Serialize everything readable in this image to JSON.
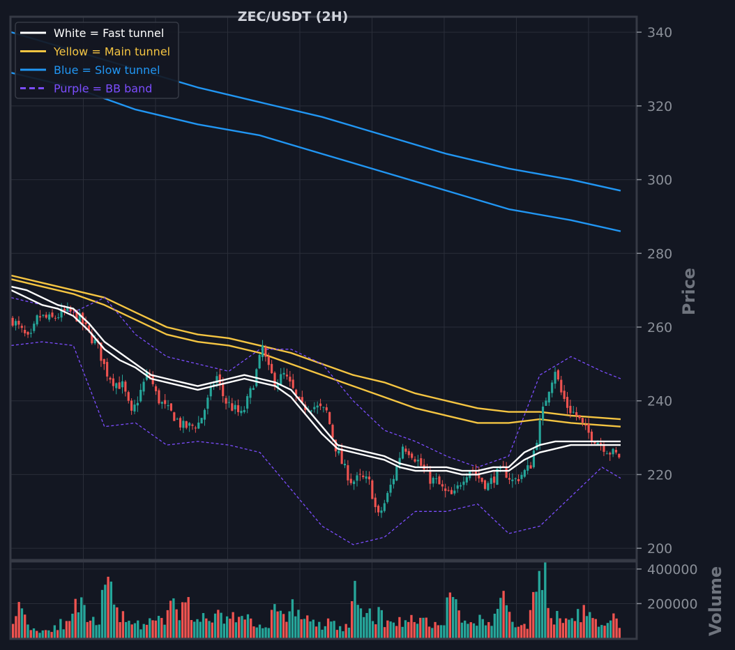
{
  "colors": {
    "background": "#131722",
    "grid": "#2a2e39",
    "frame": "#363a45",
    "up": "#26a69a",
    "down": "#ef5350",
    "fast": "#ffffff",
    "main": "#f5c542",
    "slow": "#2196f3",
    "bb": "#7c4dff"
  },
  "chart_data": {
    "type": "candlestick",
    "title": "ZEC/USDT (2H)",
    "price_axis": {
      "label": "Price",
      "ticks": [
        200,
        220,
        240,
        260,
        280,
        300,
        320,
        340
      ],
      "range": [
        197,
        344
      ],
      "side": "right"
    },
    "volume_axis": {
      "label": "Volume",
      "ticks": [
        200000,
        400000
      ],
      "tick_labels": [
        "200000",
        "400000"
      ],
      "range": [
        0,
        440000
      ],
      "side": "right"
    },
    "grid": true,
    "legend_position": "top-left",
    "legend": [
      {
        "label": "White = Fast tunnel",
        "color": "#ffffff",
        "style": "solid"
      },
      {
        "label": "Yellow = Main tunnel",
        "color": "#f5c542",
        "style": "solid"
      },
      {
        "label": "Blue = Slow tunnel",
        "color": "#2196f3",
        "style": "solid"
      },
      {
        "label": "Purple = BB band",
        "color": "#7c4dff",
        "style": "dashed"
      }
    ],
    "candle_count": 200,
    "close_path": [
      [
        0,
        262
      ],
      [
        8,
        256
      ],
      [
        12,
        263
      ],
      [
        18,
        262
      ],
      [
        24,
        264
      ],
      [
        28,
        264
      ],
      [
        32,
        262
      ],
      [
        36,
        258
      ],
      [
        40,
        255
      ],
      [
        44,
        248
      ],
      [
        48,
        245
      ],
      [
        52,
        244
      ],
      [
        56,
        236
      ],
      [
        60,
        242
      ],
      [
        64,
        248
      ],
      [
        68,
        241
      ],
      [
        72,
        238
      ],
      [
        76,
        236
      ],
      [
        80,
        233
      ],
      [
        84,
        233
      ],
      [
        88,
        234
      ],
      [
        92,
        240
      ],
      [
        96,
        247
      ],
      [
        100,
        240
      ],
      [
        104,
        238
      ],
      [
        108,
        236
      ],
      [
        112,
        242
      ],
      [
        116,
        250
      ],
      [
        118,
        255
      ],
      [
        120,
        249
      ],
      [
        124,
        245
      ],
      [
        128,
        247
      ],
      [
        132,
        243
      ],
      [
        136,
        238
      ],
      [
        140,
        239
      ],
      [
        144,
        238
      ],
      [
        148,
        237
      ],
      [
        152,
        228
      ],
      [
        156,
        222
      ],
      [
        160,
        218
      ],
      [
        164,
        219
      ],
      [
        168,
        218
      ],
      [
        170,
        214
      ],
      [
        172,
        208
      ],
      [
        176,
        213
      ],
      [
        180,
        220
      ],
      [
        184,
        228
      ],
      [
        188,
        226
      ],
      [
        192,
        223
      ],
      [
        196,
        219
      ],
      [
        200,
        218
      ],
      [
        204,
        215
      ],
      [
        208,
        214
      ],
      [
        212,
        219
      ],
      [
        216,
        222
      ],
      [
        220,
        219
      ],
      [
        224,
        217
      ],
      [
        228,
        220
      ],
      [
        232,
        221
      ],
      [
        236,
        218
      ],
      [
        240,
        220
      ],
      [
        244,
        222
      ],
      [
        248,
        232
      ],
      [
        252,
        242
      ],
      [
        256,
        249
      ],
      [
        258,
        243
      ],
      [
        262,
        238
      ],
      [
        266,
        236
      ],
      [
        270,
        232
      ],
      [
        274,
        230
      ],
      [
        278,
        228
      ],
      [
        282,
        226
      ],
      [
        286,
        225
      ]
    ],
    "fast_tunnel": {
      "upper": [
        [
          0,
          270
        ],
        [
          5,
          268
        ],
        [
          10,
          266
        ],
        [
          15,
          265
        ],
        [
          20,
          263
        ],
        [
          25,
          259
        ],
        [
          30,
          254
        ],
        [
          35,
          251
        ],
        [
          40,
          249
        ],
        [
          45,
          246
        ],
        [
          50,
          245
        ],
        [
          55,
          244
        ],
        [
          60,
          243
        ],
        [
          65,
          244
        ],
        [
          70,
          245
        ],
        [
          75,
          246
        ],
        [
          80,
          245
        ],
        [
          85,
          244
        ],
        [
          90,
          241
        ],
        [
          95,
          236
        ],
        [
          100,
          231
        ],
        [
          105,
          227
        ],
        [
          110,
          226
        ],
        [
          115,
          225
        ],
        [
          120,
          224
        ],
        [
          125,
          222
        ],
        [
          130,
          221
        ],
        [
          135,
          221
        ],
        [
          140,
          221
        ],
        [
          145,
          220
        ],
        [
          150,
          220
        ],
        [
          155,
          221
        ],
        [
          160,
          221
        ],
        [
          165,
          224
        ],
        [
          170,
          226
        ],
        [
          175,
          227
        ],
        [
          180,
          228
        ],
        [
          185,
          228
        ],
        [
          190,
          228
        ],
        [
          196,
          228
        ]
      ],
      "lower": [
        [
          0,
          271
        ],
        [
          5,
          270
        ],
        [
          10,
          268
        ],
        [
          15,
          266
        ],
        [
          20,
          265
        ],
        [
          25,
          261
        ],
        [
          30,
          256
        ],
        [
          35,
          253
        ],
        [
          40,
          250
        ],
        [
          45,
          247
        ],
        [
          50,
          246
        ],
        [
          55,
          245
        ],
        [
          60,
          244
        ],
        [
          65,
          245
        ],
        [
          70,
          246
        ],
        [
          75,
          247
        ],
        [
          80,
          246
        ],
        [
          85,
          245
        ],
        [
          90,
          243
        ],
        [
          95,
          238
        ],
        [
          100,
          233
        ],
        [
          105,
          228
        ],
        [
          110,
          227
        ],
        [
          115,
          226
        ],
        [
          120,
          225
        ],
        [
          125,
          223
        ],
        [
          130,
          222
        ],
        [
          135,
          222
        ],
        [
          140,
          222
        ],
        [
          145,
          221
        ],
        [
          150,
          221
        ],
        [
          155,
          222
        ],
        [
          160,
          222
        ],
        [
          165,
          226
        ],
        [
          170,
          228
        ],
        [
          175,
          229
        ],
        [
          180,
          229
        ],
        [
          185,
          229
        ],
        [
          190,
          229
        ],
        [
          196,
          229
        ]
      ]
    },
    "main_tunnel": {
      "upper": [
        [
          0,
          274
        ],
        [
          10,
          272
        ],
        [
          20,
          270
        ],
        [
          30,
          268
        ],
        [
          40,
          264
        ],
        [
          50,
          260
        ],
        [
          60,
          258
        ],
        [
          70,
          257
        ],
        [
          80,
          255
        ],
        [
          90,
          253
        ],
        [
          100,
          250
        ],
        [
          110,
          247
        ],
        [
          120,
          245
        ],
        [
          130,
          242
        ],
        [
          140,
          240
        ],
        [
          150,
          238
        ],
        [
          160,
          237
        ],
        [
          170,
          237
        ],
        [
          180,
          236
        ],
        [
          196,
          235
        ]
      ],
      "lower": [
        [
          0,
          273
        ],
        [
          10,
          271
        ],
        [
          20,
          269
        ],
        [
          30,
          266
        ],
        [
          40,
          262
        ],
        [
          50,
          258
        ],
        [
          60,
          256
        ],
        [
          70,
          255
        ],
        [
          80,
          253
        ],
        [
          90,
          250
        ],
        [
          100,
          247
        ],
        [
          110,
          244
        ],
        [
          120,
          241
        ],
        [
          130,
          238
        ],
        [
          140,
          236
        ],
        [
          150,
          234
        ],
        [
          160,
          234
        ],
        [
          170,
          235
        ],
        [
          180,
          234
        ],
        [
          196,
          233
        ]
      ]
    },
    "slow_tunnel": {
      "upper": [
        [
          0,
          340
        ],
        [
          20,
          335
        ],
        [
          40,
          330
        ],
        [
          60,
          325
        ],
        [
          80,
          321
        ],
        [
          100,
          317
        ],
        [
          120,
          312
        ],
        [
          140,
          307
        ],
        [
          160,
          303
        ],
        [
          180,
          300
        ],
        [
          196,
          297
        ]
      ],
      "lower": [
        [
          0,
          329
        ],
        [
          20,
          325
        ],
        [
          40,
          319
        ],
        [
          60,
          315
        ],
        [
          80,
          312
        ],
        [
          100,
          307
        ],
        [
          120,
          302
        ],
        [
          140,
          297
        ],
        [
          160,
          292
        ],
        [
          180,
          289
        ],
        [
          196,
          286
        ]
      ]
    },
    "bb_band": {
      "upper": [
        [
          0,
          268
        ],
        [
          10,
          266
        ],
        [
          20,
          264
        ],
        [
          30,
          268
        ],
        [
          40,
          258
        ],
        [
          50,
          252
        ],
        [
          60,
          250
        ],
        [
          70,
          248
        ],
        [
          80,
          254
        ],
        [
          90,
          254
        ],
        [
          100,
          250
        ],
        [
          110,
          240
        ],
        [
          120,
          232
        ],
        [
          130,
          229
        ],
        [
          140,
          225
        ],
        [
          150,
          222
        ],
        [
          160,
          225
        ],
        [
          170,
          247
        ],
        [
          180,
          252
        ],
        [
          190,
          248
        ],
        [
          196,
          246
        ]
      ],
      "lower": [
        [
          0,
          255
        ],
        [
          10,
          256
        ],
        [
          20,
          255
        ],
        [
          30,
          233
        ],
        [
          40,
          234
        ],
        [
          50,
          228
        ],
        [
          60,
          229
        ],
        [
          70,
          228
        ],
        [
          80,
          226
        ],
        [
          90,
          216
        ],
        [
          100,
          206
        ],
        [
          110,
          201
        ],
        [
          120,
          203
        ],
        [
          130,
          210
        ],
        [
          140,
          210
        ],
        [
          150,
          212
        ],
        [
          160,
          204
        ],
        [
          170,
          206
        ],
        [
          180,
          214
        ],
        [
          190,
          222
        ],
        [
          196,
          219
        ]
      ]
    },
    "volume_profile": [
      [
        0,
        150000
      ],
      [
        4,
        180000
      ],
      [
        8,
        60000
      ],
      [
        12,
        40000
      ],
      [
        16,
        60000
      ],
      [
        20,
        90000
      ],
      [
        24,
        70000
      ],
      [
        28,
        220000
      ],
      [
        32,
        100000
      ],
      [
        36,
        90000
      ],
      [
        40,
        310000
      ],
      [
        44,
        200000
      ],
      [
        48,
        110000
      ],
      [
        52,
        130000
      ],
      [
        56,
        60000
      ],
      [
        60,
        110000
      ],
      [
        64,
        90000
      ],
      [
        68,
        190000
      ],
      [
        72,
        160000
      ],
      [
        76,
        200000
      ],
      [
        80,
        120000
      ],
      [
        84,
        90000
      ],
      [
        88,
        180000
      ],
      [
        92,
        100000
      ],
      [
        96,
        150000
      ],
      [
        100,
        120000
      ],
      [
        104,
        80000
      ],
      [
        108,
        60000
      ],
      [
        112,
        170000
      ],
      [
        116,
        110000
      ],
      [
        120,
        200000
      ],
      [
        124,
        130000
      ],
      [
        128,
        90000
      ],
      [
        132,
        70000
      ],
      [
        136,
        100000
      ],
      [
        140,
        60000
      ],
      [
        144,
        70000
      ],
      [
        146,
        430000
      ],
      [
        148,
        120000
      ],
      [
        152,
        160000
      ],
      [
        156,
        140000
      ],
      [
        160,
        110000
      ],
      [
        164,
        90000
      ],
      [
        168,
        120000
      ],
      [
        172,
        100000
      ],
      [
        176,
        120000
      ],
      [
        180,
        90000
      ],
      [
        184,
        70000
      ],
      [
        188,
        300000
      ],
      [
        192,
        110000
      ],
      [
        196,
        80000
      ],
      [
        200,
        130000
      ],
      [
        204,
        70000
      ],
      [
        208,
        200000
      ],
      [
        212,
        240000
      ],
      [
        216,
        80000
      ],
      [
        220,
        60000
      ],
      [
        224,
        300000
      ],
      [
        228,
        340000
      ],
      [
        232,
        140000
      ],
      [
        236,
        80000
      ],
      [
        240,
        100000
      ],
      [
        244,
        160000
      ],
      [
        248,
        120000
      ],
      [
        252,
        60000
      ],
      [
        256,
        140000
      ],
      [
        260,
        60000
      ]
    ]
  }
}
